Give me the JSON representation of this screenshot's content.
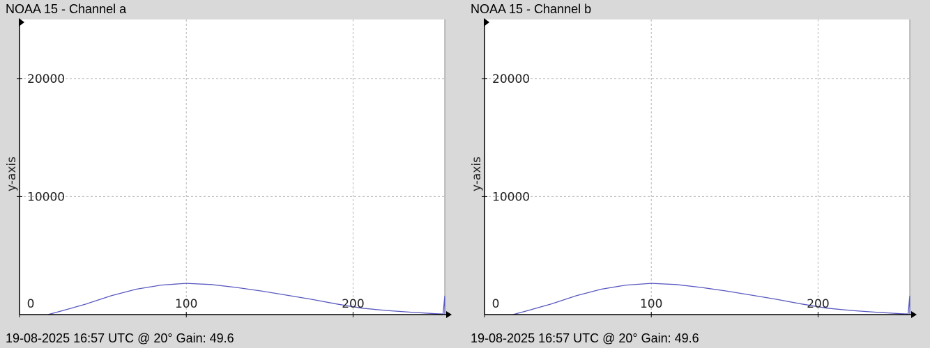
{
  "panels": [
    {
      "title": "NOAA 15 - Channel a",
      "footer": "19-08-2025 16:57 UTC @ 20° Gain: 49.6",
      "plot_bg": "#ffffff",
      "line_color": "#5858c0"
    },
    {
      "title": "NOAA 15 - Channel b",
      "footer": "19-08-2025 16:57 UTC @ 20° Gain: 49.6",
      "plot_bg": "#ffffff",
      "line_color": "#5858c0"
    }
  ],
  "chart_data": [
    {
      "type": "line",
      "title": "NOAA 15 - Channel a",
      "xlabel": "",
      "ylabel": "y-axis",
      "xlim": [
        0,
        255
      ],
      "ylim": [
        0,
        25000
      ],
      "xticks": [
        0,
        100,
        200
      ],
      "yticks": [
        10000,
        20000
      ],
      "grid": true,
      "series": [
        {
          "x": [
            17,
            25,
            40,
            55,
            70,
            85,
            100,
            115,
            130,
            145,
            160,
            175,
            190,
            205,
            220,
            235,
            250,
            254,
            255,
            255
          ],
          "y": [
            0,
            300,
            900,
            1600,
            2150,
            2500,
            2650,
            2550,
            2300,
            2000,
            1650,
            1300,
            900,
            550,
            350,
            200,
            70,
            50,
            1600,
            0
          ]
        }
      ]
    },
    {
      "type": "line",
      "title": "NOAA 15 - Channel b",
      "xlabel": "",
      "ylabel": "y-axis",
      "xlim": [
        0,
        255
      ],
      "ylim": [
        0,
        25000
      ],
      "xticks": [
        0,
        100,
        200
      ],
      "yticks": [
        10000,
        20000
      ],
      "grid": true,
      "series": [
        {
          "x": [
            17,
            25,
            40,
            55,
            70,
            85,
            100,
            115,
            130,
            145,
            160,
            175,
            190,
            205,
            220,
            235,
            250,
            254,
            255,
            255
          ],
          "y": [
            0,
            300,
            900,
            1600,
            2150,
            2500,
            2650,
            2550,
            2300,
            2000,
            1650,
            1300,
            900,
            550,
            350,
            200,
            70,
            50,
            1600,
            0
          ]
        }
      ]
    }
  ]
}
